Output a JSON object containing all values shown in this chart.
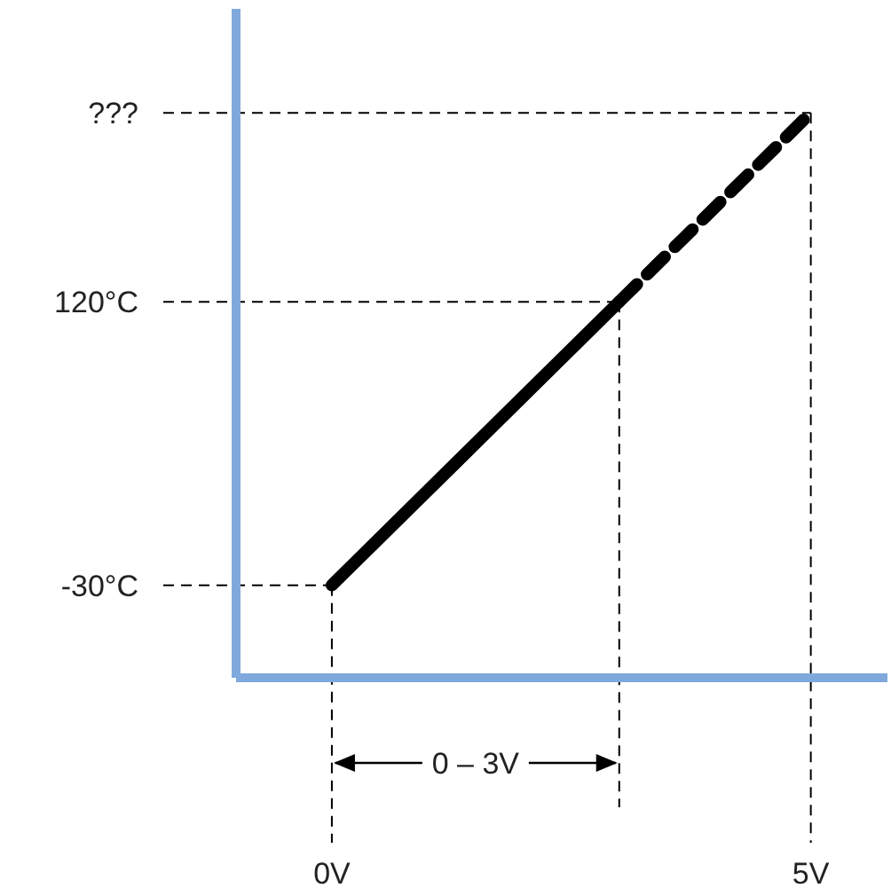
{
  "chart_data": {
    "type": "line",
    "xlim": [
      -1,
      5.8
    ],
    "ylim": [
      -79,
      275
    ],
    "xticks": [
      {
        "value": 0,
        "label": "0V"
      },
      {
        "value": 5,
        "label": "5V"
      }
    ],
    "yticks": [
      {
        "value": -30,
        "label": "-30°C"
      },
      {
        "value": 120,
        "label": "120°C"
      },
      {
        "value": 220,
        "label": "???"
      }
    ],
    "series": [
      {
        "color": "#000000",
        "line_style": "solid",
        "x": [
          0,
          3
        ],
        "values": [
          -30,
          120
        ]
      },
      {
        "color": "#000000",
        "line_style": "dashed",
        "x": [
          3,
          5
        ],
        "values": [
          120,
          220
        ]
      }
    ],
    "ref_lines": [
      {
        "axis": "x",
        "value": 0,
        "line_style": "dashed",
        "color": "#000000"
      },
      {
        "axis": "x",
        "value": 3,
        "line_style": "dashed",
        "color": "#000000"
      },
      {
        "axis": "x",
        "value": 5,
        "line_style": "dashed",
        "color": "#000000"
      },
      {
        "axis": "y",
        "value": -30,
        "line_style": "dashed",
        "color": "#000000"
      },
      {
        "axis": "y",
        "value": 120,
        "line_style": "dashed",
        "color": "#000000"
      },
      {
        "axis": "y",
        "value": 220,
        "line_style": "dashed",
        "color": "#000000"
      }
    ],
    "annotations": [
      "0 – 3V"
    ],
    "grid": false,
    "marker": "none"
  }
}
